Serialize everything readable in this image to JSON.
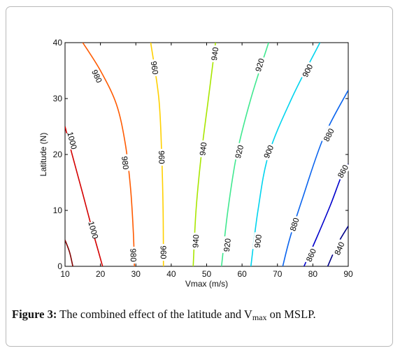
{
  "caption": {
    "label": "Figure 3:",
    "text_pre": "The combined effect of the latitude and V",
    "sub": "max",
    "text_post": " on MSLP."
  },
  "chart_data": {
    "type": "contour",
    "title": "",
    "xlabel": "Vmax (m/s)",
    "ylabel": "Latitude (N)",
    "xlim": [
      10,
      90
    ],
    "ylim": [
      0,
      40
    ],
    "xticks": [
      10,
      20,
      30,
      40,
      50,
      60,
      70,
      80,
      90
    ],
    "yticks": [
      0,
      10,
      20,
      30,
      40
    ],
    "grid": false,
    "contours": [
      {
        "level": 1020,
        "color": "#7f0000",
        "points": [
          [
            10,
            4.7
          ],
          [
            11.3,
            2.5
          ],
          [
            12.2,
            0
          ]
        ],
        "labels": []
      },
      {
        "level": 1000,
        "color": "#d40000",
        "points": [
          [
            10,
            25
          ],
          [
            12,
            20
          ],
          [
            15,
            13
          ],
          [
            17.5,
            7
          ],
          [
            19.5,
            2.5
          ],
          [
            20.6,
            0
          ]
        ],
        "labels": [
          {
            "x": 12,
            "y": 22.5,
            "text": "1000"
          },
          {
            "x": 18,
            "y": 6.5,
            "text": "1000"
          }
        ]
      },
      {
        "level": 980,
        "color": "#ff5a00",
        "points": [
          [
            15,
            40
          ],
          [
            20,
            35
          ],
          [
            24.5,
            29
          ],
          [
            27,
            22
          ],
          [
            28.5,
            14
          ],
          [
            29.3,
            6
          ],
          [
            29.6,
            0
          ]
        ],
        "labels": [
          {
            "x": 19,
            "y": 34,
            "text": "980"
          },
          {
            "x": 27,
            "y": 18.5,
            "text": "980"
          },
          {
            "x": 29.3,
            "y": 2,
            "text": "980"
          }
        ]
      },
      {
        "level": 960,
        "color": "#ffd000",
        "points": [
          [
            34.2,
            40
          ],
          [
            36.5,
            30
          ],
          [
            37.3,
            20
          ],
          [
            37.7,
            10
          ],
          [
            37.8,
            0
          ]
        ],
        "labels": [
          {
            "x": 35.3,
            "y": 35.5,
            "text": "960"
          },
          {
            "x": 37.3,
            "y": 19.5,
            "text": "960"
          },
          {
            "x": 37.8,
            "y": 2.5,
            "text": "960"
          }
        ]
      },
      {
        "level": 940,
        "color": "#a8e600",
        "points": [
          [
            52.5,
            40
          ],
          [
            50.5,
            30
          ],
          [
            48.5,
            20
          ],
          [
            47,
            10
          ],
          [
            46.2,
            0
          ]
        ],
        "labels": [
          {
            "x": 52.3,
            "y": 38,
            "text": "940"
          },
          {
            "x": 49,
            "y": 21,
            "text": "940"
          },
          {
            "x": 46.9,
            "y": 4.5,
            "text": "940"
          }
        ]
      },
      {
        "level": 920,
        "color": "#40e890",
        "points": [
          [
            67.5,
            40
          ],
          [
            62.5,
            30
          ],
          [
            58.5,
            20
          ],
          [
            56,
            10
          ],
          [
            54.2,
            0
          ]
        ],
        "labels": [
          {
            "x": 65,
            "y": 36,
            "text": "920"
          },
          {
            "x": 59.2,
            "y": 20.5,
            "text": "920"
          },
          {
            "x": 55.8,
            "y": 3.8,
            "text": "920"
          }
        ]
      },
      {
        "level": 900,
        "color": "#00d4ee",
        "points": [
          [
            82,
            40
          ],
          [
            74,
            30
          ],
          [
            67.5,
            20
          ],
          [
            64.5,
            10
          ],
          [
            62.5,
            0
          ]
        ],
        "labels": [
          {
            "x": 78.5,
            "y": 35,
            "text": "900"
          },
          {
            "x": 67.5,
            "y": 20.5,
            "text": "900"
          },
          {
            "x": 64.5,
            "y": 4.5,
            "text": "900"
          }
        ]
      },
      {
        "level": 880,
        "color": "#0a64ee",
        "points": [
          [
            90,
            31.5
          ],
          [
            83,
            23
          ],
          [
            77,
            12
          ],
          [
            73.5,
            5
          ],
          [
            71.5,
            0
          ]
        ],
        "labels": [
          {
            "x": 84.5,
            "y": 23.5,
            "text": "880"
          },
          {
            "x": 74.8,
            "y": 7.5,
            "text": "880"
          }
        ]
      },
      {
        "level": 860,
        "color": "#0000cc",
        "points": [
          [
            90,
            18.3
          ],
          [
            88,
            16
          ],
          [
            85,
            11
          ],
          [
            81,
            5
          ],
          [
            77.5,
            0
          ]
        ],
        "labels": [
          {
            "x": 88.5,
            "y": 17,
            "text": "860"
          },
          {
            "x": 79.5,
            "y": 2,
            "text": "860"
          }
        ]
      },
      {
        "level": 840,
        "color": "#000088",
        "points": [
          [
            90,
            7.2
          ],
          [
            87,
            4
          ],
          [
            84.2,
            0
          ]
        ],
        "labels": [
          {
            "x": 87.5,
            "y": 3.2,
            "text": "840"
          }
        ]
      }
    ]
  }
}
